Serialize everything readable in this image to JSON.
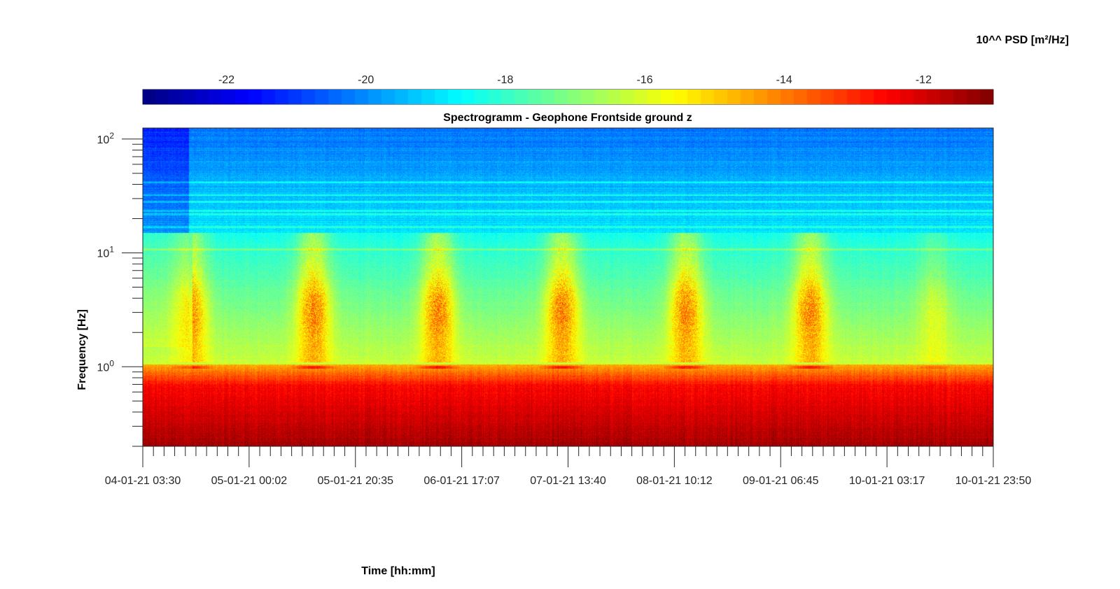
{
  "chart_data": {
    "type": "heatmap",
    "title": "Spectrogramm - Geophone Frontside ground z",
    "xlabel": "Time [hh:mm]",
    "ylabel": "Frequency [Hz]",
    "y_scale": "log",
    "ylim": [
      0.2,
      125
    ],
    "x_tick_labels": [
      "04-01-21 03:30",
      "05-01-21 00:02",
      "05-01-21 20:35",
      "06-01-21 17:07",
      "07-01-21 13:40",
      "08-01-21 10:12",
      "09-01-21 06:45",
      "10-01-21 03:17",
      "10-01-21 23:50"
    ],
    "y_ticks": [
      {
        "base": "10",
        "exp": "0",
        "value": 1
      },
      {
        "base": "10",
        "exp": "1",
        "value": 10
      },
      {
        "base": "10",
        "exp": "2",
        "value": 100
      }
    ],
    "colormap": "jet",
    "colorbar": {
      "label": "10^^ PSD [m²/Hz]",
      "range": [
        -23.2,
        -11.0
      ],
      "ticks": [
        "-22",
        "-20",
        "-18",
        "-16",
        "-14",
        "-12"
      ],
      "tick_values": [
        -22,
        -20,
        -18,
        -16,
        -14,
        -12
      ]
    },
    "features": {
      "daytime_broadband_activity_hz": [
        2,
        5
      ],
      "persistent_line_hz": 1.0,
      "microseism_band_hz": [
        0.2,
        0.7
      ]
    }
  }
}
